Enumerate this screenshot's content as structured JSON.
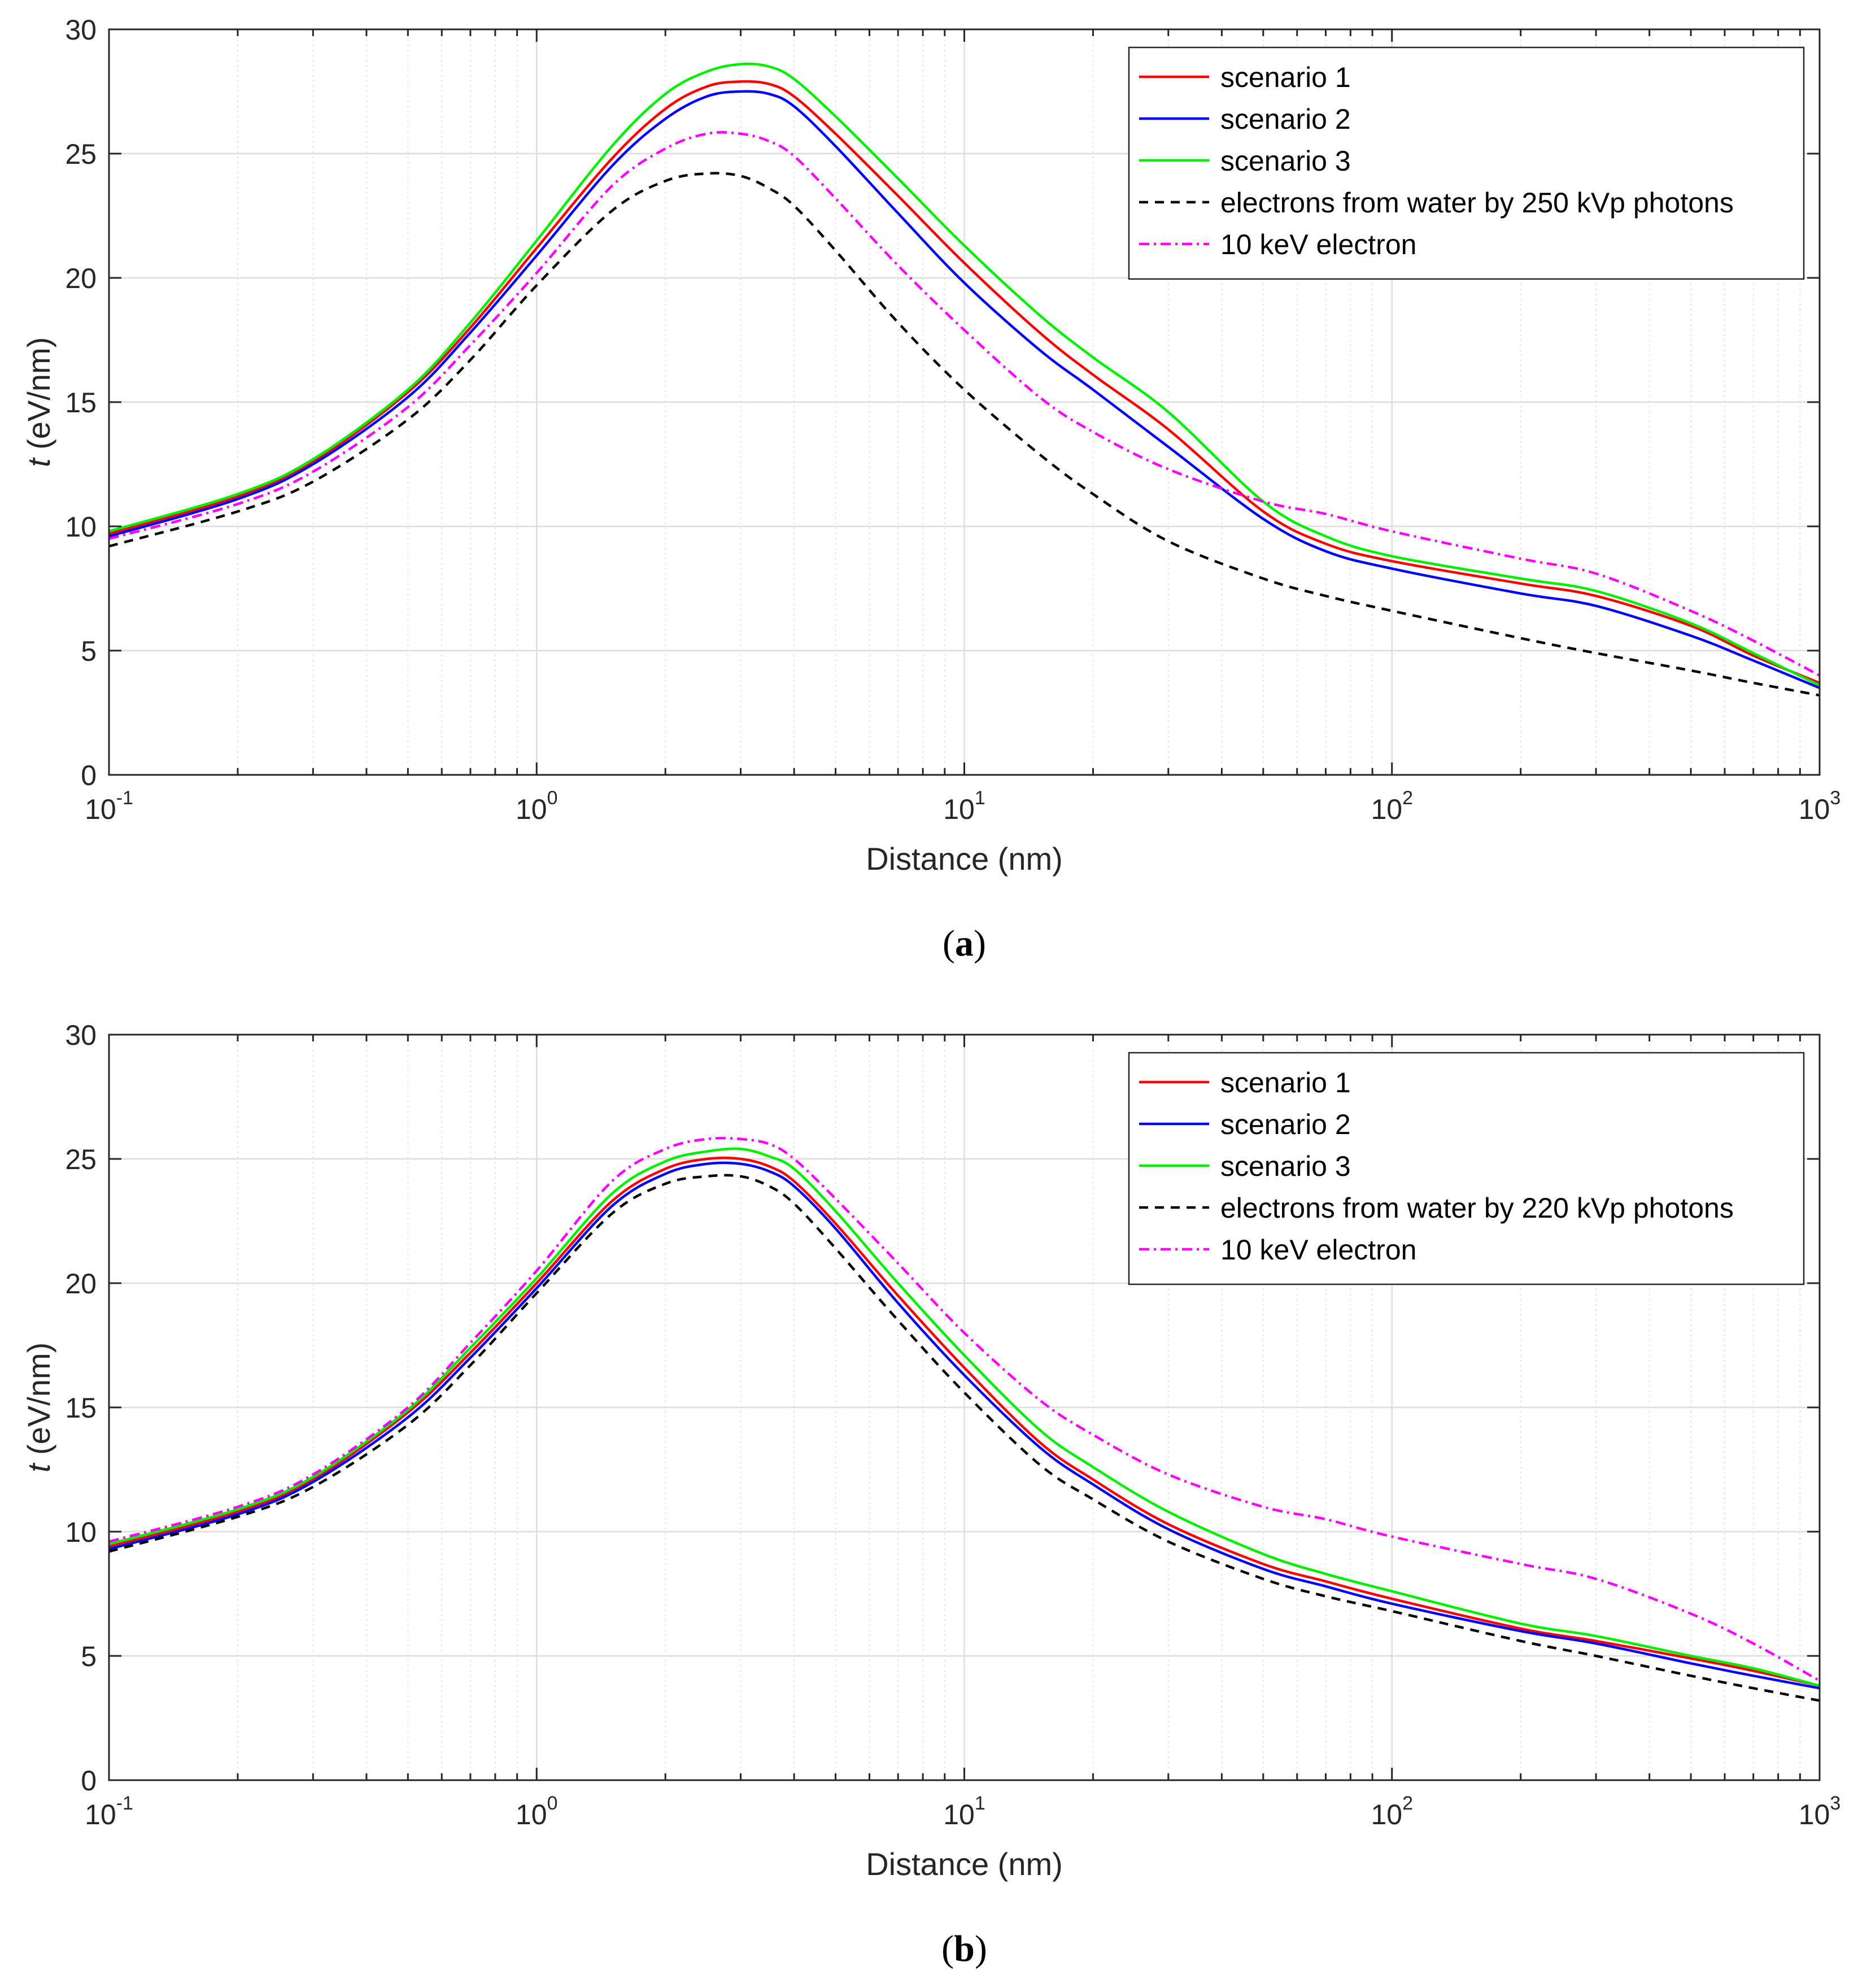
{
  "chart_data": [
    {
      "type": "line",
      "caption_label": "a",
      "xlabel": "Distance (nm)",
      "ylabel_italic": "t",
      "ylabel_rest": " (eV/nm)",
      "xscale": "log",
      "xlim": [
        0.1,
        1000
      ],
      "ylim": [
        0,
        30
      ],
      "yticks": [
        0,
        5,
        10,
        15,
        20,
        25,
        30
      ],
      "xtick_labels": [
        {
          "base": "10",
          "exp": "-1"
        },
        {
          "base": "10",
          "exp": "0"
        },
        {
          "base": "10",
          "exp": "1"
        },
        {
          "base": "10",
          "exp": "2"
        },
        {
          "base": "10",
          "exp": "3"
        }
      ],
      "grid": true,
      "legend_position": "top-right",
      "series": [
        {
          "name": "scenario 1",
          "color": "#ff0000",
          "style": "solid",
          "x": [
            0.1,
            0.2,
            0.3,
            0.5,
            0.7,
            1,
            1.5,
            2,
            2.5,
            3,
            3.5,
            4,
            5,
            7,
            10,
            15,
            20,
            30,
            50,
            70,
            100,
            200,
            300,
            500,
            700,
            1000
          ],
          "y": [
            9.7,
            11.2,
            12.6,
            15.4,
            18.0,
            21.2,
            24.8,
            26.8,
            27.7,
            27.9,
            27.8,
            27.3,
            25.8,
            23.3,
            20.6,
            17.8,
            16.1,
            13.9,
            10.6,
            9.3,
            8.6,
            7.7,
            7.2,
            6.0,
            4.8,
            3.7
          ]
        },
        {
          "name": "scenario 2",
          "color": "#0000ff",
          "style": "solid",
          "x": [
            0.1,
            0.2,
            0.3,
            0.5,
            0.7,
            1,
            1.5,
            2,
            2.5,
            3,
            3.5,
            4,
            5,
            7,
            10,
            15,
            20,
            30,
            50,
            70,
            100,
            200,
            300,
            500,
            700,
            1000
          ],
          "y": [
            9.6,
            11.1,
            12.5,
            15.2,
            17.8,
            20.9,
            24.5,
            26.4,
            27.3,
            27.5,
            27.4,
            26.9,
            25.3,
            22.6,
            19.8,
            17.1,
            15.5,
            13.2,
            10.3,
            9.0,
            8.3,
            7.3,
            6.8,
            5.6,
            4.6,
            3.5
          ]
        },
        {
          "name": "scenario 3",
          "color": "#00ee00",
          "style": "solid",
          "x": [
            0.1,
            0.2,
            0.3,
            0.5,
            0.7,
            1,
            1.5,
            2,
            2.5,
            3,
            3.5,
            4,
            5,
            7,
            10,
            15,
            20,
            30,
            50,
            70,
            100,
            200,
            300,
            500,
            700,
            1000
          ],
          "y": [
            9.8,
            11.3,
            12.7,
            15.5,
            18.2,
            21.5,
            25.3,
            27.4,
            28.3,
            28.6,
            28.5,
            28.0,
            26.5,
            24.0,
            21.3,
            18.5,
            16.8,
            14.6,
            11.0,
            9.6,
            8.8,
            7.9,
            7.4,
            6.1,
            4.9,
            3.6
          ]
        },
        {
          "name": "electrons from water by 250 kVp photons",
          "color": "#000000",
          "style": "dashed",
          "x": [
            0.1,
            0.2,
            0.3,
            0.5,
            0.7,
            1,
            1.5,
            2,
            2.5,
            3,
            3.5,
            4,
            5,
            7,
            10,
            15,
            20,
            30,
            50,
            70,
            100,
            200,
            300,
            500,
            700,
            1000
          ],
          "y": [
            9.2,
            10.6,
            11.8,
            14.3,
            16.7,
            19.7,
            22.7,
            23.9,
            24.2,
            24.1,
            23.6,
            22.9,
            21.1,
            18.2,
            15.5,
            12.9,
            11.3,
            9.4,
            7.9,
            7.2,
            6.6,
            5.5,
            4.9,
            4.2,
            3.7,
            3.2
          ]
        },
        {
          "name": "10 keV electron",
          "color": "#ff00ff",
          "style": "dashdot",
          "x": [
            0.1,
            0.2,
            0.3,
            0.5,
            0.7,
            1,
            1.5,
            2,
            2.5,
            3,
            3.5,
            4,
            5,
            7,
            10,
            15,
            20,
            30,
            50,
            70,
            100,
            200,
            300,
            500,
            700,
            1000
          ],
          "y": [
            9.5,
            10.9,
            12.2,
            14.8,
            17.3,
            20.2,
            23.7,
            25.2,
            25.8,
            25.8,
            25.5,
            24.9,
            23.2,
            20.5,
            17.9,
            15.2,
            13.8,
            12.3,
            11.0,
            10.5,
            9.8,
            8.7,
            8.1,
            6.6,
            5.4,
            4.0
          ]
        }
      ]
    },
    {
      "type": "line",
      "caption_label": "b",
      "xlabel": "Distance (nm)",
      "ylabel_italic": "t",
      "ylabel_rest": " (eV/nm)",
      "xscale": "log",
      "xlim": [
        0.1,
        1000
      ],
      "ylim": [
        0,
        30
      ],
      "yticks": [
        0,
        5,
        10,
        15,
        20,
        25,
        30
      ],
      "xtick_labels": [
        {
          "base": "10",
          "exp": "-1"
        },
        {
          "base": "10",
          "exp": "0"
        },
        {
          "base": "10",
          "exp": "1"
        },
        {
          "base": "10",
          "exp": "2"
        },
        {
          "base": "10",
          "exp": "3"
        }
      ],
      "grid": true,
      "legend_position": "top-right",
      "series": [
        {
          "name": "scenario 1",
          "color": "#ff0000",
          "style": "solid",
          "x": [
            0.1,
            0.2,
            0.3,
            0.5,
            0.7,
            1,
            1.5,
            2,
            2.5,
            3,
            3.5,
            4,
            5,
            7,
            10,
            15,
            20,
            30,
            50,
            70,
            100,
            200,
            300,
            500,
            700,
            1000
          ],
          "y": [
            9.4,
            10.8,
            12.1,
            14.8,
            17.2,
            20.0,
            23.3,
            24.6,
            25.0,
            25.0,
            24.7,
            24.1,
            22.4,
            19.5,
            16.6,
            13.6,
            12.1,
            10.3,
            8.7,
            8.0,
            7.3,
            6.1,
            5.6,
            4.9,
            4.4,
            3.8
          ]
        },
        {
          "name": "scenario 2",
          "color": "#0000ff",
          "style": "solid",
          "x": [
            0.1,
            0.2,
            0.3,
            0.5,
            0.7,
            1,
            1.5,
            2,
            2.5,
            3,
            3.5,
            4,
            5,
            7,
            10,
            15,
            20,
            30,
            50,
            70,
            100,
            200,
            300,
            500,
            700,
            1000
          ],
          "y": [
            9.3,
            10.7,
            12.0,
            14.6,
            17.0,
            19.8,
            23.1,
            24.4,
            24.8,
            24.8,
            24.5,
            23.9,
            22.2,
            19.2,
            16.3,
            13.4,
            11.9,
            10.1,
            8.5,
            7.8,
            7.1,
            6.0,
            5.5,
            4.7,
            4.2,
            3.7
          ]
        },
        {
          "name": "scenario 3",
          "color": "#00ee00",
          "style": "solid",
          "x": [
            0.1,
            0.2,
            0.3,
            0.5,
            0.7,
            1,
            1.5,
            2,
            2.5,
            3,
            3.5,
            4,
            5,
            7,
            10,
            15,
            20,
            30,
            50,
            70,
            100,
            200,
            300,
            500,
            700,
            1000
          ],
          "y": [
            9.5,
            10.9,
            12.2,
            14.9,
            17.4,
            20.2,
            23.6,
            24.9,
            25.3,
            25.4,
            25.1,
            24.6,
            22.9,
            20.0,
            17.1,
            14.1,
            12.6,
            10.8,
            9.1,
            8.3,
            7.6,
            6.3,
            5.8,
            5.0,
            4.5,
            3.8
          ]
        },
        {
          "name": "electrons from water by 220 kVp photons",
          "color": "#000000",
          "style": "dashed",
          "x": [
            0.1,
            0.2,
            0.3,
            0.5,
            0.7,
            1,
            1.5,
            2,
            2.5,
            3,
            3.5,
            4,
            5,
            7,
            10,
            15,
            20,
            30,
            50,
            70,
            100,
            200,
            300,
            500,
            700,
            1000
          ],
          "y": [
            9.2,
            10.6,
            11.8,
            14.3,
            16.7,
            19.6,
            22.8,
            24.0,
            24.3,
            24.3,
            23.9,
            23.2,
            21.4,
            18.5,
            15.6,
            12.7,
            11.3,
            9.6,
            8.1,
            7.4,
            6.8,
            5.6,
            5.0,
            4.2,
            3.7,
            3.2
          ]
        },
        {
          "name": "10 keV electron",
          "color": "#ff00ff",
          "style": "dashdot",
          "x": [
            0.1,
            0.2,
            0.3,
            0.5,
            0.7,
            1,
            1.5,
            2,
            2.5,
            3,
            3.5,
            4,
            5,
            7,
            10,
            15,
            20,
            30,
            50,
            70,
            100,
            200,
            300,
            500,
            700,
            1000
          ],
          "y": [
            9.6,
            11.0,
            12.3,
            15.0,
            17.6,
            20.5,
            24.1,
            25.4,
            25.8,
            25.8,
            25.6,
            25.0,
            23.4,
            20.8,
            18.0,
            15.3,
            13.9,
            12.3,
            11.0,
            10.5,
            9.8,
            8.7,
            8.1,
            6.7,
            5.5,
            4.0
          ]
        }
      ]
    }
  ]
}
